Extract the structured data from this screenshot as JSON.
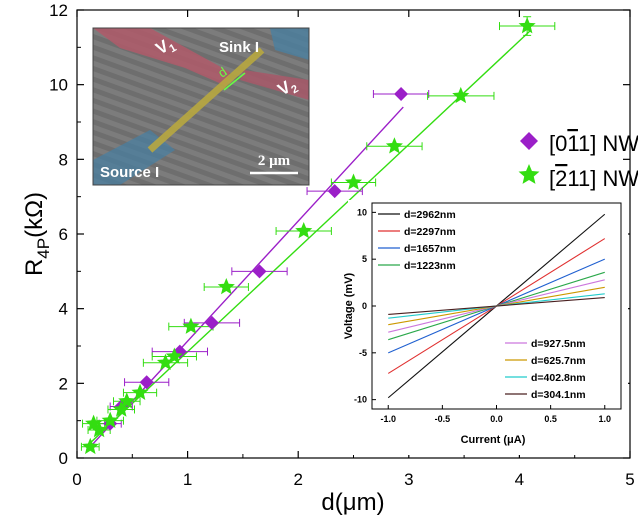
{
  "chart_data": [
    {
      "type": "scatter",
      "xlabel": "d(μm)",
      "ylabel_main": "R",
      "ylabel_sub": "4P",
      "ylabel_tail": "(kΩ)",
      "xlim": [
        0,
        5
      ],
      "ylim": [
        0,
        12
      ],
      "x_ticks": [
        "0",
        "1",
        "2",
        "3",
        "4",
        "5"
      ],
      "y_ticks": [
        "0",
        "2",
        "4",
        "6",
        "8",
        "10",
        "12"
      ],
      "legend_position": "upper-right",
      "series": [
        {
          "name": "[0-11] NW",
          "legend_text": "[011] NW",
          "color": "#9b1fc8",
          "marker": "diamond",
          "x": [
            0.3,
            0.4,
            0.63,
            0.93,
            1.22,
            1.65,
            2.33,
            2.93
          ],
          "y": [
            0.92,
            1.38,
            2.03,
            2.85,
            3.62,
            5.0,
            7.15,
            9.75
          ],
          "xerr": [
            0.1,
            0.1,
            0.2,
            0.25,
            0.25,
            0.25,
            0.25,
            0.25
          ],
          "fit": {
            "x": [
              0.12,
              2.95
            ],
            "y": [
              0.3,
              9.4
            ]
          }
        },
        {
          "name": "[-211] NW",
          "legend_text": "[211] NW",
          "color": "#33dd11",
          "marker": "star",
          "x": [
            0.12,
            0.15,
            0.2,
            0.3,
            0.4,
            0.45,
            0.57,
            0.8,
            0.88,
            1.03,
            1.35,
            2.05,
            2.5,
            2.87,
            3.47,
            4.07
          ],
          "y": [
            0.3,
            0.92,
            0.75,
            1.0,
            1.3,
            1.52,
            1.75,
            2.55,
            2.72,
            3.52,
            4.58,
            6.08,
            7.38,
            8.35,
            9.7,
            11.57
          ],
          "xerr": [
            0.08,
            0.1,
            0.1,
            0.12,
            0.12,
            0.12,
            0.15,
            0.2,
            0.2,
            0.2,
            0.2,
            0.25,
            0.2,
            0.25,
            0.3,
            0.25
          ],
          "yerr": [
            0,
            0,
            0,
            0,
            0,
            0,
            0,
            0,
            0,
            0,
            0,
            0,
            0,
            0,
            0,
            0.25
          ],
          "fit": {
            "x": [
              0.1,
              4.1
            ],
            "y": [
              0.35,
              11.45
            ]
          }
        }
      ]
    },
    {
      "type": "line",
      "xlabel": "Current (μA)",
      "ylabel": "Voltage (mV)",
      "xlim": [
        -1.15,
        1.15
      ],
      "ylim": [
        -11,
        11
      ],
      "x_ticks": [
        "-1.0",
        "-0.5",
        "0.0",
        "0.5",
        "1.0"
      ],
      "y_ticks": [
        "-10",
        "-5",
        "0",
        "5",
        "10"
      ],
      "series": [
        {
          "name": "d=2962nm",
          "color": "#111111",
          "x": [
            -1,
            1
          ],
          "y": [
            -9.8,
            9.8
          ]
        },
        {
          "name": "d=2297nm",
          "color": "#e03030",
          "x": [
            -1,
            1
          ],
          "y": [
            -7.2,
            7.2
          ]
        },
        {
          "name": "d=1657nm",
          "color": "#2060d0",
          "x": [
            -1,
            1
          ],
          "y": [
            -5.0,
            5.0
          ]
        },
        {
          "name": "d=1223nm",
          "color": "#2aa84a",
          "x": [
            -1,
            1
          ],
          "y": [
            -3.6,
            3.6
          ]
        },
        {
          "name": "d=927.5nm",
          "color": "#cc77dd",
          "x": [
            -1,
            1
          ],
          "y": [
            -2.8,
            2.8
          ]
        },
        {
          "name": "d=625.7nm",
          "color": "#cc9900",
          "x": [
            -1,
            1
          ],
          "y": [
            -2.0,
            2.0
          ]
        },
        {
          "name": "d=402.8nm",
          "color": "#22cccc",
          "x": [
            -1,
            1
          ],
          "y": [
            -1.3,
            1.3
          ]
        },
        {
          "name": "d=304.1nm",
          "color": "#4a2020",
          "x": [
            -1,
            1
          ],
          "y": [
            -0.9,
            0.9
          ]
        }
      ]
    }
  ],
  "inset_image": {
    "labels": {
      "v1": "V",
      "v1_sub": "1",
      "v2": "V",
      "v2_sub": "2",
      "sink": "Sink I",
      "source": "Source I",
      "d": "d",
      "scale_bar": "2 μm"
    }
  }
}
